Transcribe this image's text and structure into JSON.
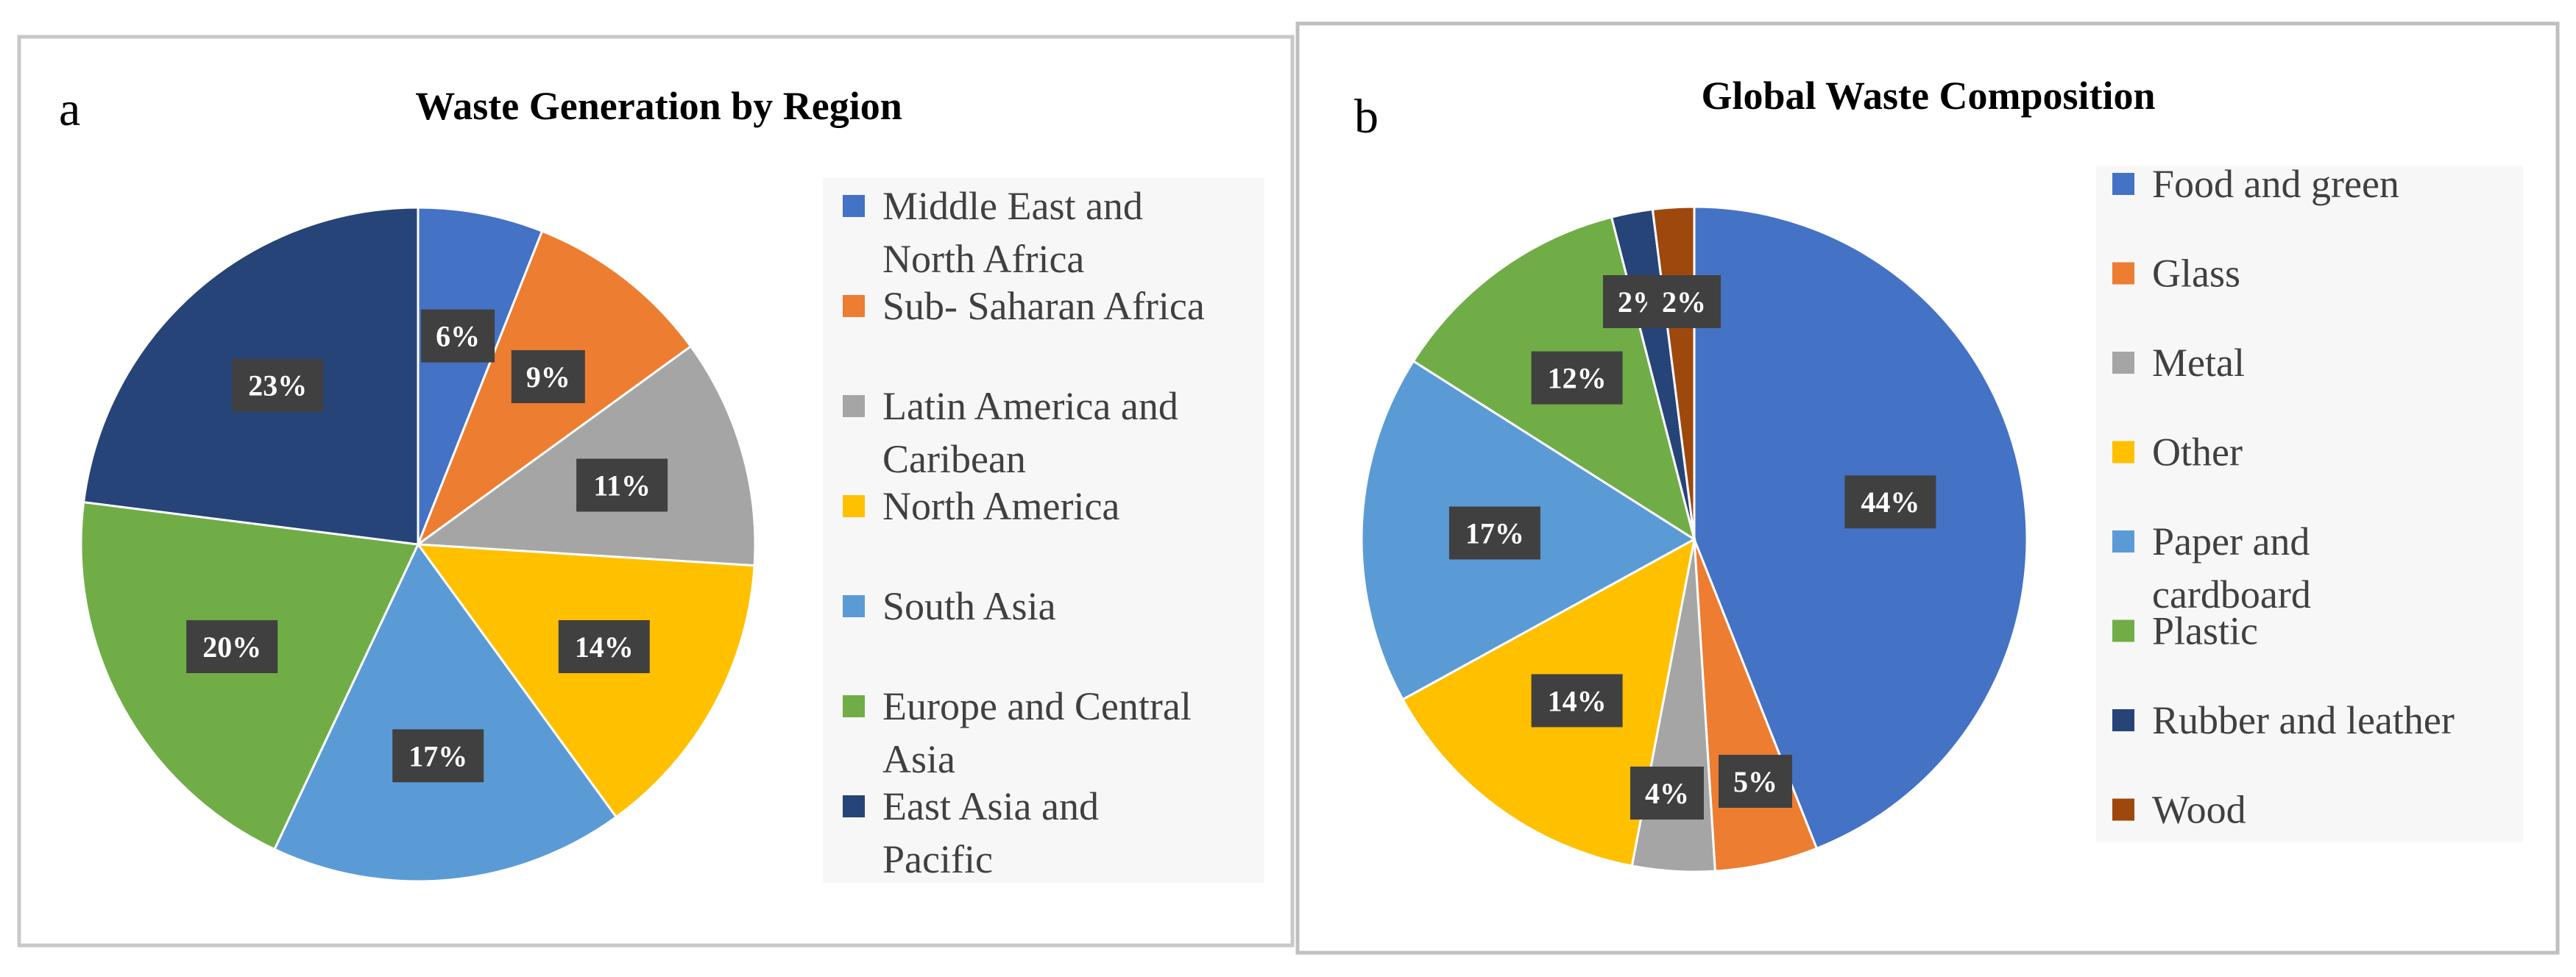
{
  "chart_data": [
    {
      "type": "pie",
      "panel_label": "a",
      "title": "Waste Generation by Region",
      "slices": [
        {
          "label": "Middle East and North Africa",
          "lines": [
            "Middle East and",
            "North Africa"
          ],
          "value": 6,
          "value_label": "6%",
          "color": "#4472C4"
        },
        {
          "label": "Sub- Saharan Africa",
          "lines": [
            "Sub- Saharan Africa"
          ],
          "value": 9,
          "value_label": "9%",
          "color": "#ED7D31"
        },
        {
          "label": "Latin America and Caribean",
          "lines": [
            "Latin America and",
            "Caribean"
          ],
          "value": 11,
          "value_label": "11%",
          "color": "#A5A5A5"
        },
        {
          "label": "North America",
          "lines": [
            "North America"
          ],
          "value": 14,
          "value_label": "14%",
          "color": "#FFC000"
        },
        {
          "label": "South Asia",
          "lines": [
            "South Asia"
          ],
          "value": 17,
          "value_label": "17%",
          "color": "#5B9BD5"
        },
        {
          "label": "Europe and Central Asia",
          "lines": [
            "Europe and Central",
            "Asia"
          ],
          "value": 20,
          "value_label": "20%",
          "color": "#70AD47"
        },
        {
          "label": "East Asia and Pacific",
          "lines": [
            "East Asia and",
            "Pacific"
          ],
          "value": 23,
          "value_label": "23%",
          "color": "#264478"
        }
      ],
      "legend_position": "right"
    },
    {
      "type": "pie",
      "panel_label": "b",
      "title": "Global Waste Composition",
      "slices": [
        {
          "label": "Food and green",
          "lines": [
            "Food and green"
          ],
          "value": 44,
          "value_label": "44%",
          "color": "#4472C4"
        },
        {
          "label": "Glass",
          "lines": [
            "Glass"
          ],
          "value": 5,
          "value_label": "5%",
          "color": "#ED7D31"
        },
        {
          "label": "Metal",
          "lines": [
            "Metal"
          ],
          "value": 4,
          "value_label": "4%",
          "color": "#A5A5A5"
        },
        {
          "label": "Other",
          "lines": [
            "Other"
          ],
          "value": 14,
          "value_label": "14%",
          "color": "#FFC000"
        },
        {
          "label": "Paper and cardboard",
          "lines": [
            "Paper and",
            "cardboard"
          ],
          "value": 17,
          "value_label": "17%",
          "color": "#5B9BD5"
        },
        {
          "label": "Plastic",
          "lines": [
            "Plastic"
          ],
          "value": 12,
          "value_label": "12%",
          "color": "#70AD47"
        },
        {
          "label": "Rubber and leather",
          "lines": [
            "Rubber and leather"
          ],
          "value": 2,
          "value_label": "2%",
          "color": "#264478"
        },
        {
          "label": "Wood",
          "lines": [
            "Wood"
          ],
          "value": 2,
          "value_label": "2%",
          "color": "#9E480E"
        }
      ],
      "legend_position": "right"
    }
  ]
}
